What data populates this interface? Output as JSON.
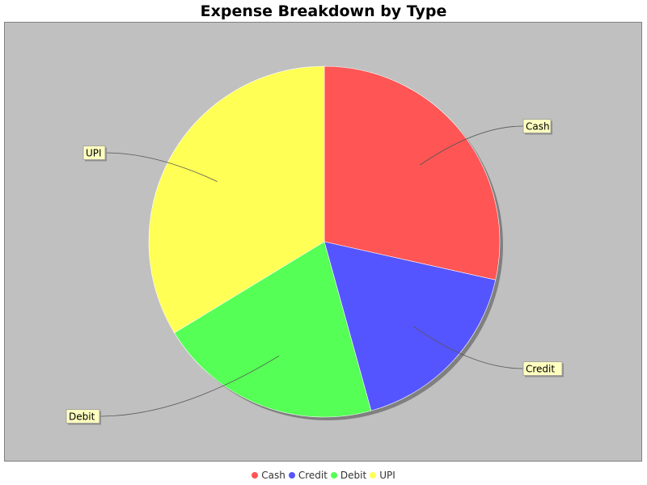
{
  "chart_data": {
    "type": "pie",
    "title": "Expense Breakdown by Type",
    "categories": [
      "Cash",
      "Credit",
      "Debit",
      "UPI"
    ],
    "values": [
      28.5,
      17.2,
      20.6,
      33.7
    ],
    "colors": [
      "#ff5555",
      "#5555ff",
      "#55ff55",
      "#ffff55"
    ],
    "background": "#c0c0c0",
    "legend_position": "bottom",
    "start_angle_deg": 90,
    "direction": "clockwise"
  }
}
